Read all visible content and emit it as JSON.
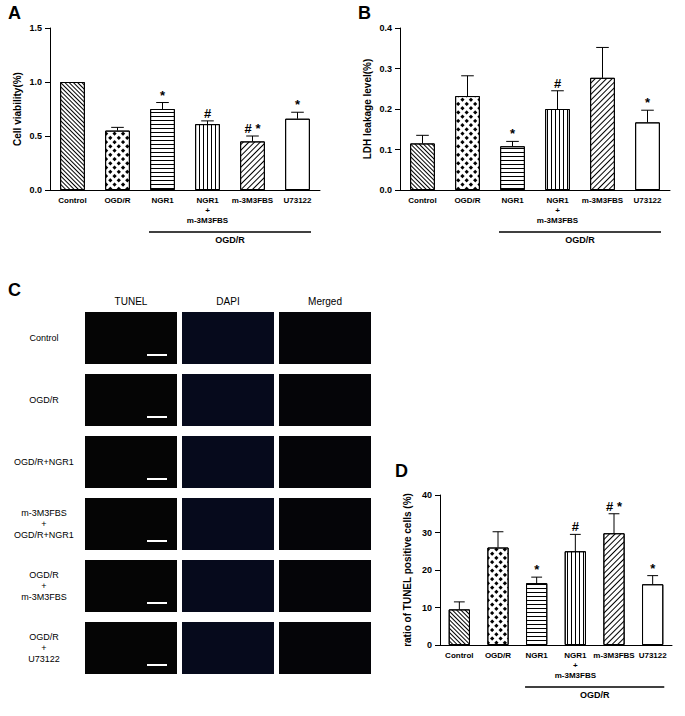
{
  "chart_data": [
    {
      "panel": "A",
      "type": "bar",
      "y_label": "Cell viability(%)",
      "categories": [
        "Control",
        "OGD/R",
        "NGR1",
        "NGR1\n+\nm-3M3FBS",
        "m-3M3FBS",
        "U73122"
      ],
      "values": [
        1.0,
        0.55,
        0.75,
        0.61,
        0.45,
        0.66
      ],
      "errors": [
        0,
        0.03,
        0.06,
        0.03,
        0.05,
        0.06
      ],
      "annotations": [
        null,
        null,
        "*",
        "#",
        "# *",
        "*"
      ],
      "color": "#ffffff",
      "ylim": [
        0,
        1.5
      ],
      "yticks": [
        {
          "value": 0,
          "label": "0.0"
        },
        {
          "value": 0.5,
          "label": "0.5"
        },
        {
          "value": 1,
          "label": "1.0"
        },
        {
          "value": 1.5,
          "label": "1.5"
        }
      ],
      "group": {
        "label": "OGD/R",
        "from": "NGR1",
        "to": "U73122"
      }
    },
    {
      "panel": "B",
      "type": "bar",
      "y_label": "LDH leakage level(%)",
      "categories": [
        "Control",
        "OGD/R",
        "NGR1",
        "NGR1\n+\nm-3M3FBS",
        "m-3M3FBS",
        "U73122"
      ],
      "values": [
        0.115,
        0.232,
        0.108,
        0.2,
        0.277,
        0.167
      ],
      "errors": [
        0.02,
        0.05,
        0.012,
        0.045,
        0.075,
        0.03
      ],
      "annotations": [
        null,
        null,
        "*",
        "#",
        null,
        "*"
      ],
      "color": "#ffffff",
      "ylim": [
        0,
        0.4
      ],
      "yticks": [
        {
          "value": 0,
          "label": "0.0"
        },
        {
          "value": 0.1,
          "label": "0.1"
        },
        {
          "value": 0.2,
          "label": "0.2"
        },
        {
          "value": 0.3,
          "label": "0.3"
        },
        {
          "value": 0.4,
          "label": "0.4"
        }
      ],
      "group": {
        "label": "OGD/R",
        "from": "NGR1",
        "to": "U73122"
      }
    },
    {
      "panel": "D",
      "type": "bar",
      "y_label": "ratio of TUNEL positive cells (%)",
      "categories": [
        "Control",
        "OGD/R",
        "NGR1",
        "NGR1\n+\nm-3M3FBS",
        "m-3M3FBS",
        "U73122"
      ],
      "values": [
        9.5,
        26,
        16.5,
        25,
        29.8,
        16.2
      ],
      "errors": [
        2,
        4.2,
        1.6,
        4.5,
        5.2,
        2.3
      ],
      "annotations": [
        null,
        null,
        "*",
        "#",
        "# *",
        "*"
      ],
      "color": "#ffffff",
      "ylim": [
        0,
        40
      ],
      "yticks": [
        0,
        10,
        20,
        30,
        40
      ],
      "group": {
        "label": "OGD/R",
        "from": "NGR1",
        "to": "U73122"
      }
    }
  ],
  "image_panel": {
    "panel": "C",
    "columns": [
      "TUNEL",
      "DAPI",
      "Merged"
    ],
    "rows": [
      "Control",
      "OGD/R",
      "OGD/R+NGR1",
      "m-3M3FBS\n+\nOGD/R+NGR1",
      "OGD/R\n+\nm-3M3FBS",
      "OGD/R\n+\nU73122"
    ]
  }
}
